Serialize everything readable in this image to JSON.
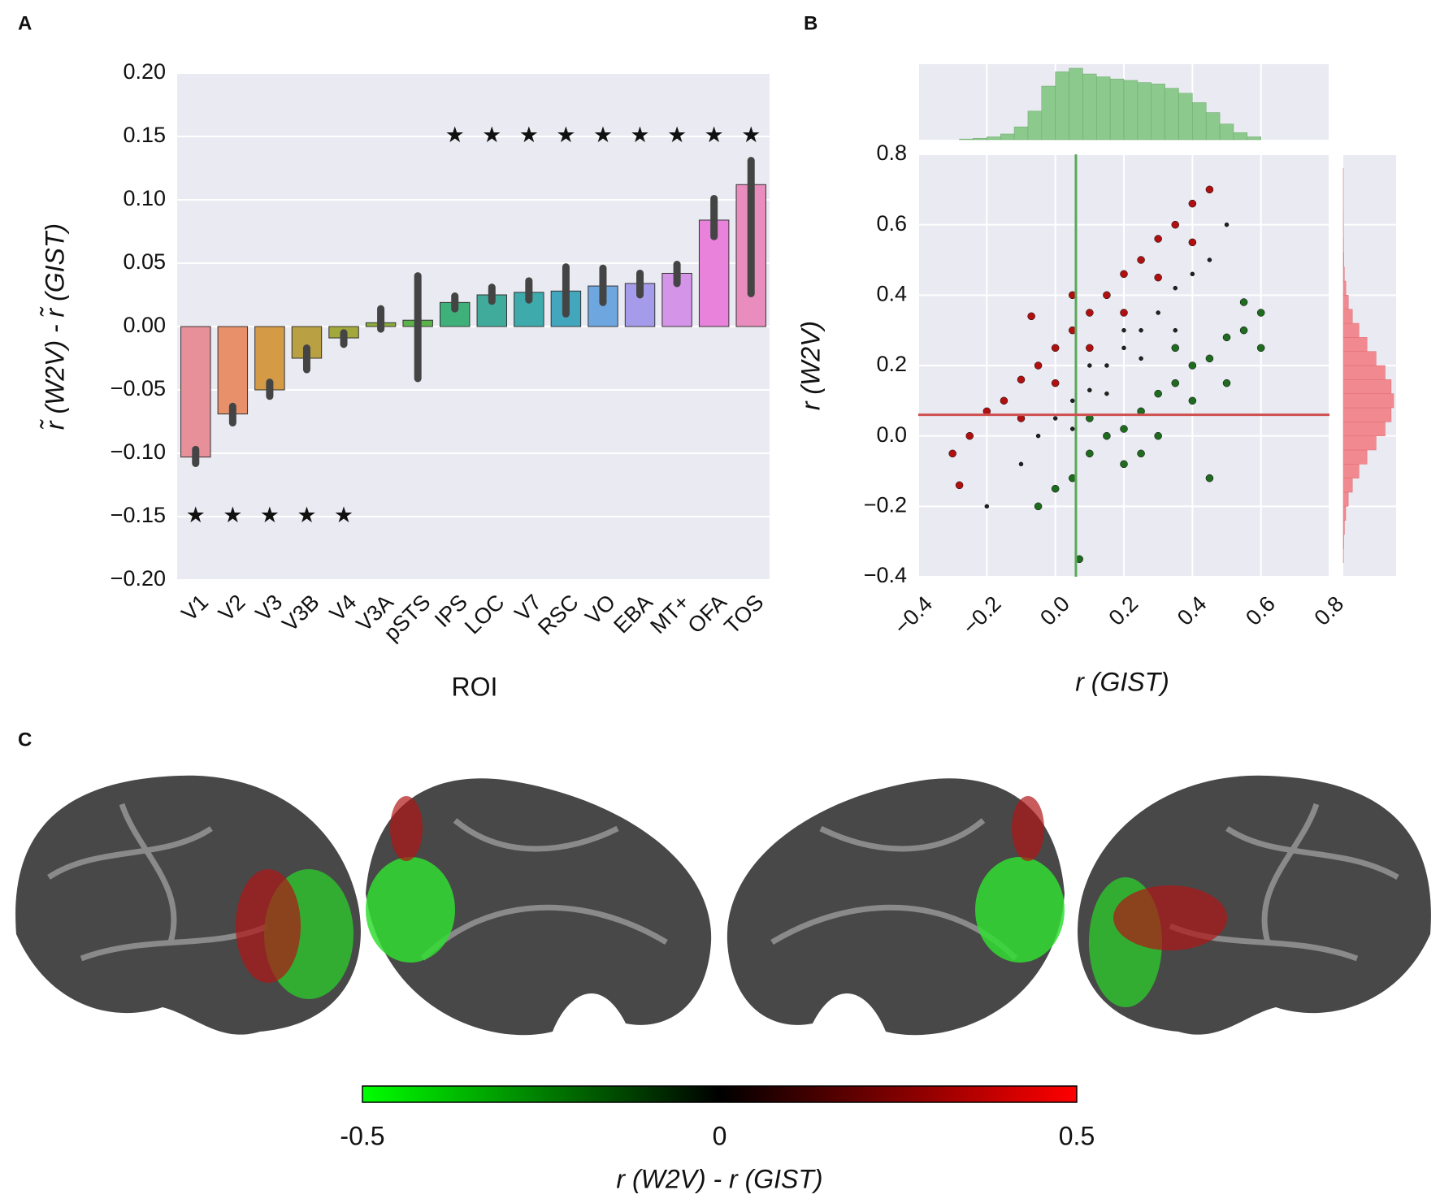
{
  "chart_data": [
    {
      "type": "bar",
      "label": "A",
      "ylabel": "r̃ (W2V) - r̃ (GIST)",
      "xlabel": "ROI",
      "categories": [
        "V1",
        "V2",
        "V3",
        "V3B",
        "V4",
        "V3A",
        "pSTS",
        "IPS",
        "LOC",
        "V7",
        "RSC",
        "VO",
        "EBA",
        "MT+",
        "OFA",
        "TOS"
      ],
      "values": [
        -0.103,
        -0.069,
        -0.05,
        -0.025,
        -0.009,
        0.003,
        0.005,
        0.019,
        0.025,
        0.027,
        0.028,
        0.032,
        0.034,
        0.042,
        0.084,
        0.112
      ],
      "ci": [
        [
          -0.108,
          -0.097
        ],
        [
          -0.076,
          -0.063
        ],
        [
          -0.055,
          -0.044
        ],
        [
          -0.034,
          -0.017
        ],
        [
          -0.014,
          -0.005
        ],
        [
          -0.002,
          0.014
        ],
        [
          -0.041,
          0.04
        ],
        [
          0.014,
          0.024
        ],
        [
          0.02,
          0.031
        ],
        [
          0.021,
          0.036
        ],
        [
          0.01,
          0.047
        ],
        [
          0.019,
          0.046
        ],
        [
          0.025,
          0.042
        ],
        [
          0.034,
          0.049
        ],
        [
          0.071,
          0.101
        ],
        [
          0.026,
          0.131
        ]
      ],
      "colors": [
        "#e8909a",
        "#e8906a",
        "#d49a45",
        "#b9a042",
        "#a3a83c",
        "#8cad3a",
        "#5cb24a",
        "#3fb07a",
        "#40ab9a",
        "#3eaaab",
        "#42a6bd",
        "#6ea6e0",
        "#a49ceb",
        "#d494e8",
        "#e882da",
        "#e88dbd"
      ],
      "stars": [
        {
          "value": 0.15,
          "color": "#ee1111",
          "categories": [
            "IPS",
            "LOC",
            "V7",
            "RSC",
            "VO",
            "EBA",
            "MT+",
            "OFA",
            "TOS"
          ]
        },
        {
          "value": -0.15,
          "color": "#117711",
          "categories": [
            "V1",
            "V2",
            "V3",
            "V3B",
            "V4"
          ]
        }
      ],
      "ylim": [
        -0.2,
        0.2
      ],
      "yticks": [
        {
          "value": -0.2,
          "label": "−0.20"
        },
        {
          "value": -0.15,
          "label": "−0.15"
        },
        {
          "value": -0.1,
          "label": "−0.10"
        },
        {
          "value": -0.05,
          "label": "−0.05"
        },
        {
          "value": 0,
          "label": "0.00"
        },
        {
          "value": 0.05,
          "label": "0.05"
        },
        {
          "value": 0.1,
          "label": "0.10"
        },
        {
          "value": 0.15,
          "label": "0.15"
        },
        {
          "value": 0.2,
          "label": "0.20"
        }
      ],
      "grid": true
    },
    {
      "type": "scatter",
      "label": "B",
      "xlabel": "r (GIST)",
      "ylabel": "r (W2V)",
      "xlim": [
        -0.4,
        0.8
      ],
      "ylim": [
        -0.4,
        0.8
      ],
      "xticks": [
        {
          "value": -0.4,
          "label": "−0.4"
        },
        {
          "value": -0.2,
          "label": "−0.2"
        },
        {
          "value": 0,
          "label": "0.0"
        },
        {
          "value": 0.2,
          "label": "0.2"
        },
        {
          "value": 0.4,
          "label": "0.4"
        },
        {
          "value": 0.6,
          "label": "0.6"
        },
        {
          "value": 0.8,
          "label": "0.8"
        }
      ],
      "yticks": [
        {
          "value": -0.4,
          "label": "−0.4"
        },
        {
          "value": -0.2,
          "label": "−0.2"
        },
        {
          "value": 0,
          "label": "0.0"
        },
        {
          "value": 0.2,
          "label": "0.2"
        },
        {
          "value": 0.4,
          "label": "0.4"
        },
        {
          "value": 0.6,
          "label": "0.6"
        },
        {
          "value": 0.8,
          "label": "0.8"
        }
      ],
      "grid": true,
      "series": [
        {
          "color": "#b01010",
          "x": [
            -0.3,
            -0.25,
            -0.2,
            -0.15,
            -0.1,
            -0.05,
            0,
            0.05,
            0.1,
            0.15,
            0.2,
            0.25,
            0.3,
            0.35,
            0.4,
            0.45,
            0,
            0.1,
            0.2,
            0.3,
            -0.1,
            0.05,
            -0.07,
            -0.28,
            0.4
          ],
          "y": [
            -0.05,
            0,
            0.07,
            0.1,
            0.16,
            0.2,
            0.25,
            0.3,
            0.35,
            0.4,
            0.46,
            0.5,
            0.56,
            0.6,
            0.66,
            0.7,
            0.15,
            0.25,
            0.35,
            0.45,
            0.05,
            0.4,
            0.34,
            -0.14,
            0.55
          ]
        },
        {
          "color": "#222222",
          "x": [
            -0.2,
            -0.1,
            -0.05,
            0,
            0.05,
            0.1,
            0.15,
            0.2,
            0.25,
            0.3,
            0.35,
            0.4,
            0.45,
            0.5,
            0.05,
            0.15,
            0.25,
            0.35,
            0.1,
            0.2
          ],
          "y": [
            -0.2,
            -0.08,
            0,
            0.05,
            0.1,
            0.13,
            0.2,
            0.25,
            0.3,
            0.35,
            0.42,
            0.46,
            0.5,
            0.6,
            0.02,
            0.12,
            0.22,
            0.3,
            0.2,
            0.3
          ]
        },
        {
          "color": "#1f6b1f",
          "x": [
            -0.05,
            0,
            0.05,
            0.1,
            0.15,
            0.2,
            0.25,
            0.3,
            0.35,
            0.4,
            0.45,
            0.5,
            0.55,
            0.6,
            0.3,
            0.4,
            0.5,
            0.2,
            0.07,
            0.45,
            0.55,
            0.6,
            0.1,
            0.35,
            0.25
          ],
          "y": [
            -0.2,
            -0.15,
            -0.12,
            -0.05,
            0,
            0.02,
            0.07,
            0.12,
            0.15,
            0.2,
            0.22,
            0.28,
            0.3,
            0.25,
            0,
            0.1,
            0.15,
            -0.08,
            -0.35,
            -0.12,
            0.38,
            0.35,
            0.05,
            0.25,
            -0.05
          ]
        }
      ],
      "vline": {
        "value": 0.06,
        "color": "#5aa85a"
      },
      "hline": {
        "value": 0.06,
        "color": "#d05050"
      },
      "top_histogram": {
        "color": "#8cc98c",
        "bins": [
          -0.28,
          -0.24,
          -0.2,
          -0.16,
          -0.12,
          -0.08,
          -0.04,
          0,
          0.04,
          0.08,
          0.12,
          0.16,
          0.2,
          0.24,
          0.28,
          0.32,
          0.36,
          0.4,
          0.44,
          0.48,
          0.52,
          0.56,
          0.6
        ],
        "counts": [
          1,
          2,
          4,
          8,
          18,
          40,
          75,
          95,
          100,
          92,
          88,
          85,
          83,
          80,
          78,
          72,
          65,
          52,
          38,
          22,
          10,
          4
        ]
      },
      "right_histogram": {
        "color": "#f08a90",
        "bins": [
          -0.36,
          -0.32,
          -0.28,
          -0.24,
          -0.2,
          -0.16,
          -0.12,
          -0.08,
          -0.04,
          0,
          0.04,
          0.08,
          0.12,
          0.16,
          0.2,
          0.24,
          0.28,
          0.32,
          0.36,
          0.4,
          0.44,
          0.48,
          0.52,
          0.56,
          0.6,
          0.64,
          0.68,
          0.72,
          0.76
        ],
        "counts": [
          0.3,
          0.9,
          2.2,
          4.8,
          9.9,
          18,
          31,
          47,
          65,
          83,
          95,
          100,
          95,
          83,
          65,
          47,
          31,
          18,
          10,
          5,
          2,
          1,
          0.5,
          0.3,
          0.2,
          0.1,
          0.1,
          0.1
        ]
      }
    },
    {
      "type": "colorbar",
      "label": "C",
      "xlabel": "r (W2V) - r (GIST)",
      "xlim": [
        -0.5,
        0.5
      ],
      "xticks": [
        -0.5,
        0,
        0.5
      ],
      "colors": [
        "#00ff00",
        "#000000",
        "#ff0000"
      ]
    }
  ]
}
